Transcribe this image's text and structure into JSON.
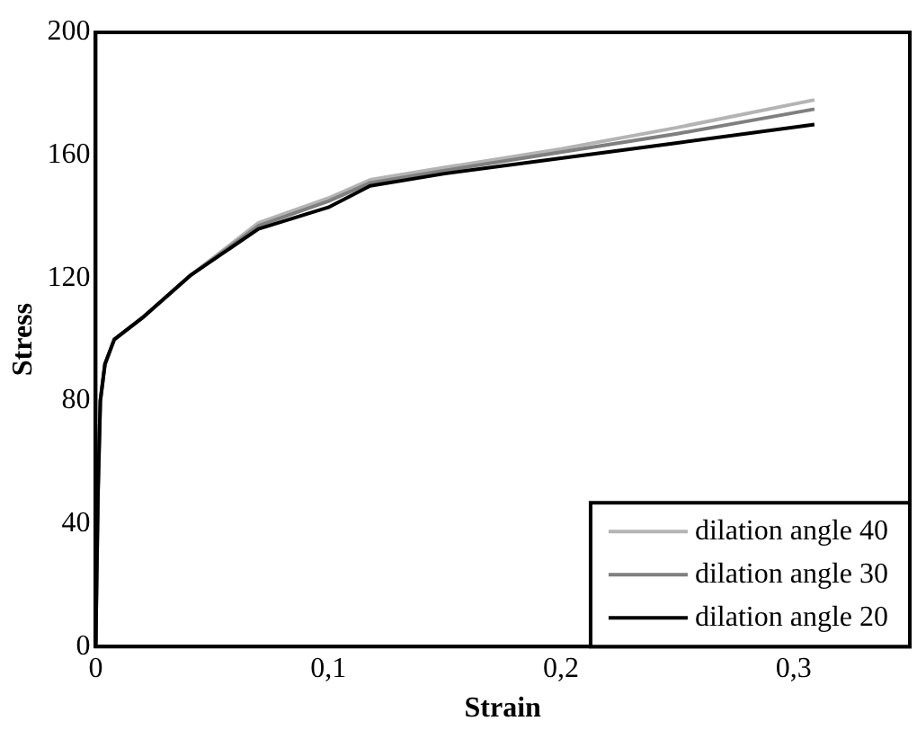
{
  "chart_data": {
    "type": "line",
    "xlabel": "Strain",
    "ylabel": "Stress",
    "xlim": [
      0,
      0.35
    ],
    "ylim": [
      0,
      200
    ],
    "xticks": [
      0,
      {
        "value": 0.1,
        "label": "0,1"
      },
      {
        "value": 0.2,
        "label": "0,2"
      },
      {
        "value": 0.3,
        "label": "0,3"
      }
    ],
    "yticks": [
      0,
      40,
      80,
      120,
      160,
      200
    ],
    "grid": false,
    "legend": "bottom right",
    "marker": "none",
    "line_style": "solid",
    "x": [
      0,
      0.001,
      0.002,
      0.004,
      0.008,
      0.02,
      0.041,
      0.07,
      0.1,
      0.118,
      0.15,
      0.2,
      0.25,
      0.309
    ],
    "series": [
      {
        "name": "dilation angle 40",
        "color": "#b4b4b4",
        "values": [
          0,
          50,
          80,
          92,
          100,
          107,
          121,
          138,
          146,
          152,
          156,
          162,
          169,
          178
        ]
      },
      {
        "name": "dilation angle 30",
        "color": "#7f7f7f",
        "values": [
          0,
          50,
          80,
          92,
          100,
          107,
          121,
          137,
          145,
          151,
          155,
          161,
          167,
          175
        ]
      },
      {
        "name": "dilation angle 20",
        "color": "#000000",
        "values": [
          0,
          50,
          80,
          92,
          100,
          107,
          121,
          136,
          143,
          150,
          154,
          159,
          164,
          170
        ]
      }
    ]
  }
}
